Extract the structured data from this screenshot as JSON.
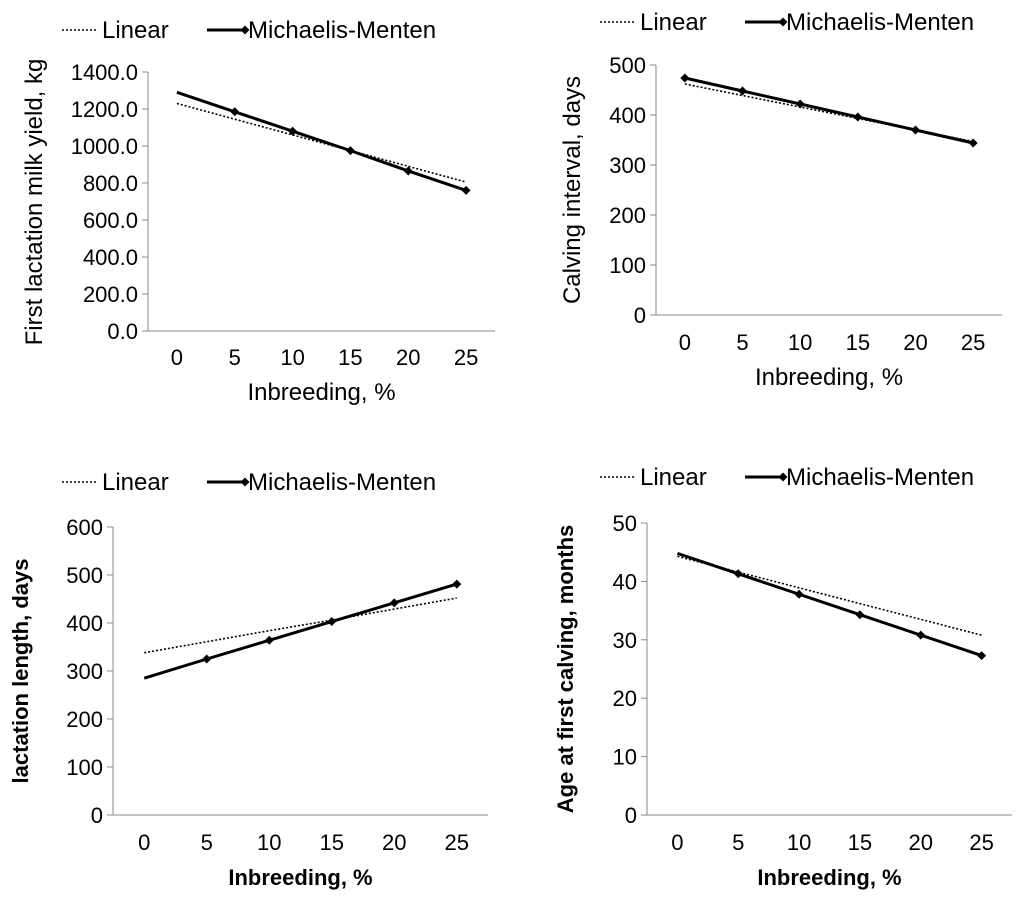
{
  "chart_data": [
    {
      "type": "line",
      "title": "",
      "xlabel": "Inbreeding, %",
      "ylabel": "First lactation milk yield, kg",
      "categories": [
        "0",
        "5",
        "10",
        "15",
        "20",
        "25"
      ],
      "x": [
        0,
        5,
        10,
        15,
        20,
        25
      ],
      "ytick_labels": [
        "0.0",
        "200.0",
        "400.0",
        "600.0",
        "800.0",
        "1000.0",
        "1200.0",
        "1400.0"
      ],
      "ylim": [
        0,
        1400
      ],
      "legend": [
        "Linear",
        "Michaelis-Menten"
      ],
      "legend_position": "top",
      "grid": false,
      "series": [
        {
          "name": "Linear",
          "style": "dotted",
          "values": [
            1230,
            1145,
            1060,
            975,
            890,
            805
          ]
        },
        {
          "name": "Michaelis-Menten",
          "style": "solid-diamond",
          "values": [
            1290,
            1185,
            1080,
            975,
            865,
            760
          ]
        }
      ]
    },
    {
      "type": "line",
      "title": "",
      "xlabel": "Inbreeding, %",
      "ylabel": "Calving interval, days",
      "categories": [
        "0",
        "5",
        "10",
        "15",
        "20",
        "25"
      ],
      "x": [
        0,
        5,
        10,
        15,
        20,
        25
      ],
      "ytick_labels": [
        "0",
        "100",
        "200",
        "300",
        "400",
        "500"
      ],
      "ylim": [
        0,
        500
      ],
      "legend": [
        "Linear",
        "Michaelis-Menten"
      ],
      "legend_position": "top",
      "grid": false,
      "series": [
        {
          "name": "Linear",
          "style": "dotted",
          "values": [
            462,
            439,
            416,
            393,
            370,
            347
          ]
        },
        {
          "name": "Michaelis-Menten",
          "style": "solid-diamond",
          "values": [
            474,
            448,
            422,
            396,
            370,
            344
          ]
        }
      ]
    },
    {
      "type": "line",
      "title": "",
      "xlabel": "Inbreeding, %",
      "ylabel": "lactation length, days",
      "categories": [
        "0",
        "5",
        "10",
        "15",
        "20",
        "25"
      ],
      "x": [
        0,
        5,
        10,
        15,
        20,
        25
      ],
      "ytick_labels": [
        "0",
        "100",
        "200",
        "300",
        "400",
        "500",
        "600"
      ],
      "ylim": [
        0,
        600
      ],
      "legend": [
        "Linear",
        "Michaelis-Menten"
      ],
      "legend_position": "top",
      "grid": false,
      "series": [
        {
          "name": "Linear",
          "style": "dotted",
          "values": [
            338,
            361,
            384,
            406,
            429,
            452
          ]
        },
        {
          "name": "Michaelis-Menten",
          "style": "solid-diamond",
          "values": [
            285,
            325,
            364,
            403,
            442,
            481
          ]
        }
      ]
    },
    {
      "type": "line",
      "title": "",
      "xlabel": "Inbreeding, %",
      "ylabel": "Age at first calving, months",
      "categories": [
        "0",
        "5",
        "10",
        "15",
        "20",
        "25"
      ],
      "x": [
        0,
        5,
        10,
        15,
        20,
        25
      ],
      "ytick_labels": [
        "0",
        "10",
        "20",
        "30",
        "40",
        "50"
      ],
      "ylim": [
        0,
        50
      ],
      "legend": [
        "Linear",
        "Michaelis-Menten"
      ],
      "legend_position": "top",
      "grid": false,
      "series": [
        {
          "name": "Linear",
          "style": "dotted",
          "values": [
            44.3,
            41.6,
            38.9,
            36.2,
            33.5,
            30.8
          ]
        },
        {
          "name": "Michaelis-Menten",
          "style": "solid-diamond",
          "values": [
            44.8,
            41.3,
            37.8,
            34.3,
            30.8,
            27.3
          ]
        }
      ]
    }
  ]
}
